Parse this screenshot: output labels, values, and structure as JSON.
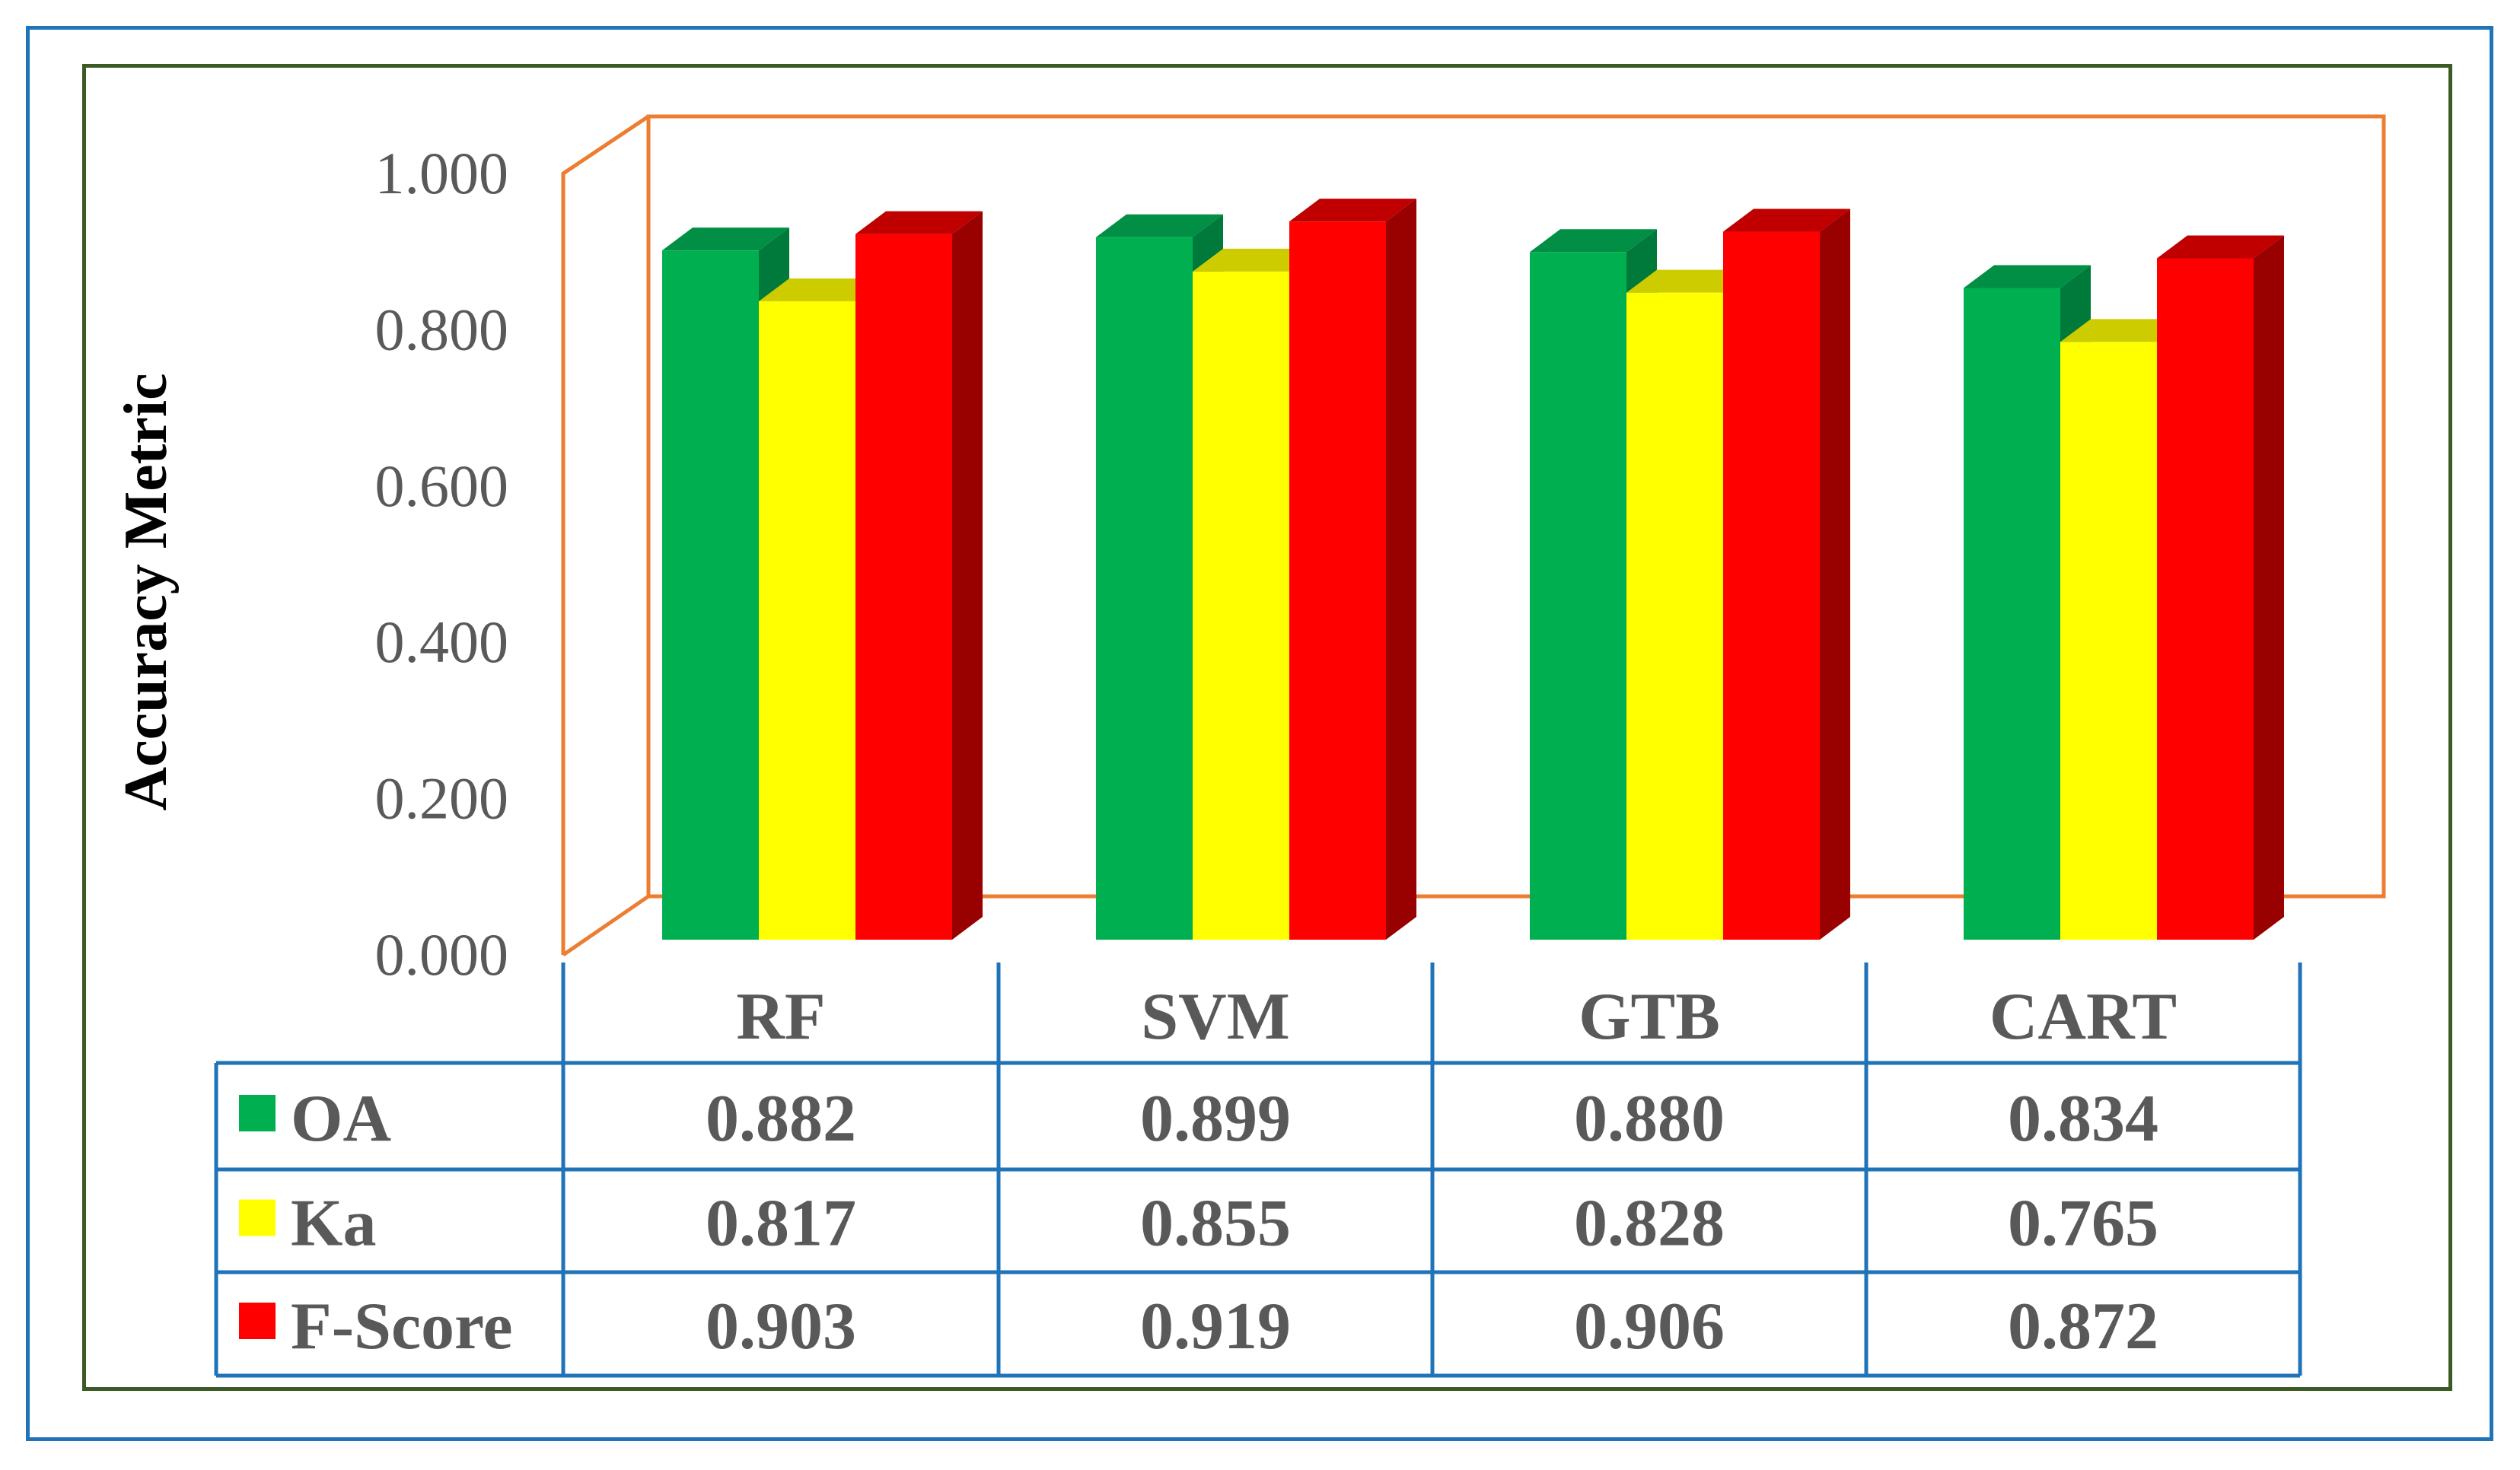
{
  "chart_data": {
    "type": "bar",
    "ylabel": "Accuracy Metric",
    "ylim": [
      0,
      1
    ],
    "yticks": [
      "0.000",
      "0.200",
      "0.400",
      "0.600",
      "0.800",
      "1.000"
    ],
    "categories": [
      "RF",
      "SVM",
      "GTB",
      "CART"
    ],
    "series": [
      {
        "name": "OA",
        "color": "#00b050",
        "side": "#007a3a",
        "top": "#008f44",
        "values": [
          0.882,
          0.899,
          0.88,
          0.834
        ],
        "labels": [
          "0.882",
          "0.899",
          "0.880",
          "0.834"
        ]
      },
      {
        "name": "Ka",
        "color": "#ffff00",
        "side": "#b3b300",
        "top": "#cccc00",
        "values": [
          0.817,
          0.855,
          0.828,
          0.765
        ],
        "labels": [
          "0.817",
          "0.855",
          "0.828",
          "0.765"
        ]
      },
      {
        "name": "F-Score",
        "color": "#ff0000",
        "side": "#990000",
        "top": "#c00000",
        "values": [
          0.903,
          0.919,
          0.906,
          0.872
        ],
        "labels": [
          "0.903",
          "0.919",
          "0.906",
          "0.872"
        ]
      }
    ],
    "grid": false,
    "legend": "data-table",
    "wall_color": "#ed7d31",
    "table_border_color": "#1f73b8"
  }
}
